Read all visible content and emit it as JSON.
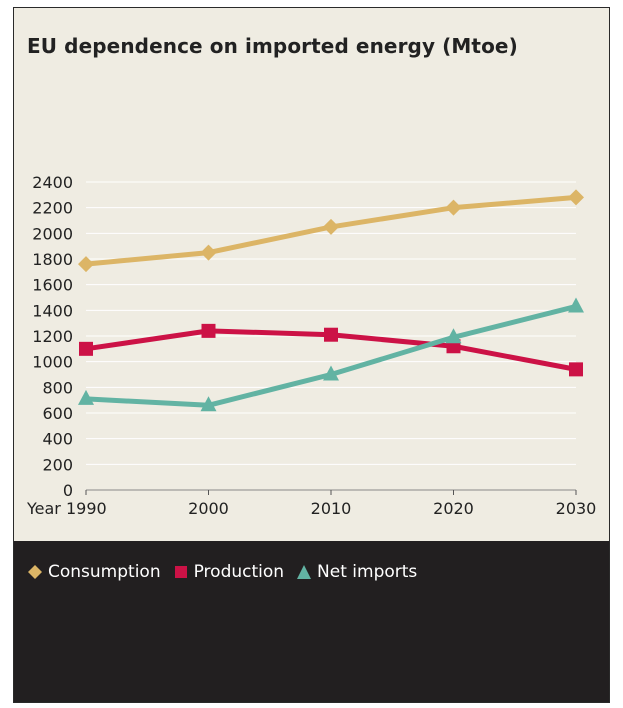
{
  "colors": {
    "background": "#efece2",
    "footer": "#221f20",
    "consumption": "#dcb566",
    "production": "#cc1246",
    "net_imports": "#62b3a3",
    "grid": "#ffffff"
  },
  "chart_data": {
    "type": "line",
    "title": "EU dependence on imported energy (Mtoe)",
    "x": [
      1990,
      2000,
      2010,
      2020,
      2030
    ],
    "x_tick_labels": [
      "Year 1990",
      "2000",
      "2010",
      "2020",
      "2030"
    ],
    "y_ticks": [
      0,
      200,
      400,
      600,
      800,
      1000,
      1200,
      1400,
      1600,
      1800,
      2000,
      2200,
      2400
    ],
    "ylim": [
      0,
      2400
    ],
    "grid": "horizontal",
    "legend_position": "bottom",
    "series": [
      {
        "name": "Consumption",
        "values": [
          1760,
          1850,
          2050,
          2200,
          2280
        ],
        "color": "#dcb566",
        "marker": "diamond"
      },
      {
        "name": "Production",
        "values": [
          1100,
          1240,
          1210,
          1120,
          940
        ],
        "color": "#cc1246",
        "marker": "square"
      },
      {
        "name": "Net imports",
        "values": [
          710,
          660,
          900,
          1190,
          1430
        ],
        "color": "#62b3a3",
        "marker": "triangle"
      }
    ]
  }
}
